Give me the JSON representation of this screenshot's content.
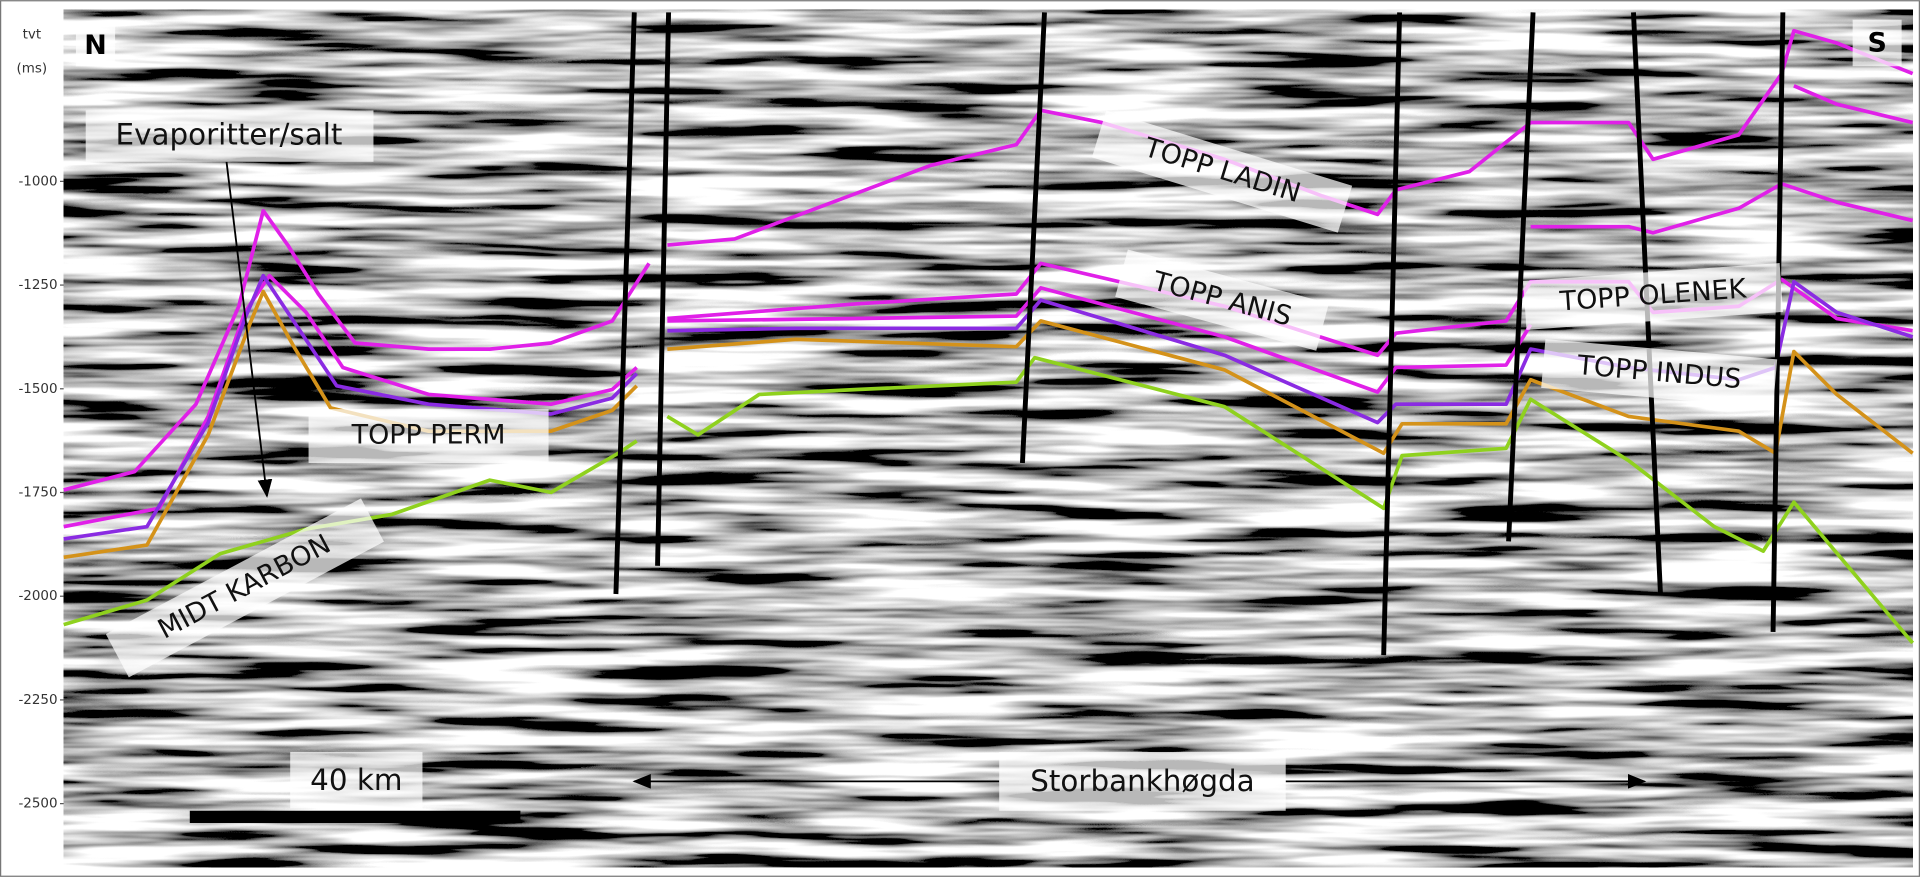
{
  "axis": {
    "title": "tvt",
    "unit": "(ms)",
    "ticks": [
      -1000,
      -1250,
      -1500,
      -1750,
      -2000,
      -2250,
      -2500
    ]
  },
  "compass": {
    "north": "N",
    "south": "S"
  },
  "annotations": {
    "salt": "Evaporitter/salt",
    "scale_bar": "40 km",
    "high": "Storbankhøgda"
  },
  "horizons": [
    "TOPP LADIN",
    "TOPP ANIS",
    "TOPP OLENEK",
    "TOPP INDUS",
    "TOPP PERM",
    "MIDT KARBON"
  ]
}
